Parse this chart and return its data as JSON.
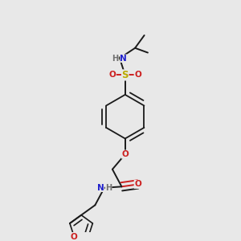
{
  "background_color": "#e8e8e8",
  "atom_colors": {
    "C": "#1a1a1a",
    "H": "#707070",
    "N": "#2020cc",
    "O": "#cc2020",
    "S": "#bbaa00"
  },
  "bond_color": "#1a1a1a",
  "bond_lw": 1.4,
  "dbo": 0.018,
  "figsize": [
    3.0,
    3.0
  ],
  "dpi": 100
}
